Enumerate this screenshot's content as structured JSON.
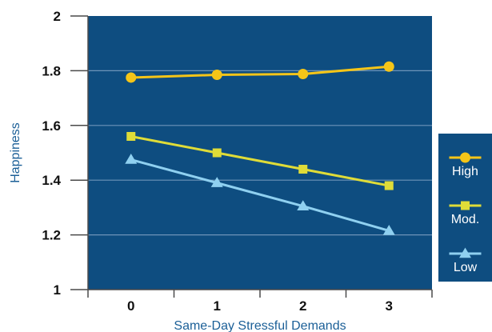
{
  "chart_data": {
    "type": "line",
    "title": "",
    "xlabel": "Same-Day Stressful Demands",
    "ylabel": "Happiness",
    "categories": [
      "0",
      "1",
      "2",
      "3"
    ],
    "ylim": [
      1,
      2
    ],
    "yticks": [
      "1",
      "1.2",
      "1.4",
      "1.6",
      "1.8",
      "2"
    ],
    "grid": true,
    "legend_position": "right",
    "series": [
      {
        "name": "High",
        "marker": "circle",
        "values": [
          1.775,
          1.785,
          1.788,
          1.815
        ]
      },
      {
        "name": "Mod.",
        "marker": "square",
        "values": [
          1.56,
          1.5,
          1.44,
          1.38
        ]
      },
      {
        "name": "Low",
        "marker": "triangle",
        "values": [
          1.475,
          1.39,
          1.305,
          1.215
        ]
      }
    ]
  },
  "colors": {
    "plot_background": "#0e4d80",
    "grid": "#6d94b8",
    "axis": "#4a4a4a",
    "High": "#f5c518",
    "Mod.": "#dfdc38",
    "Low": "#8fd0f0",
    "legend_background": "#0e4d80"
  }
}
